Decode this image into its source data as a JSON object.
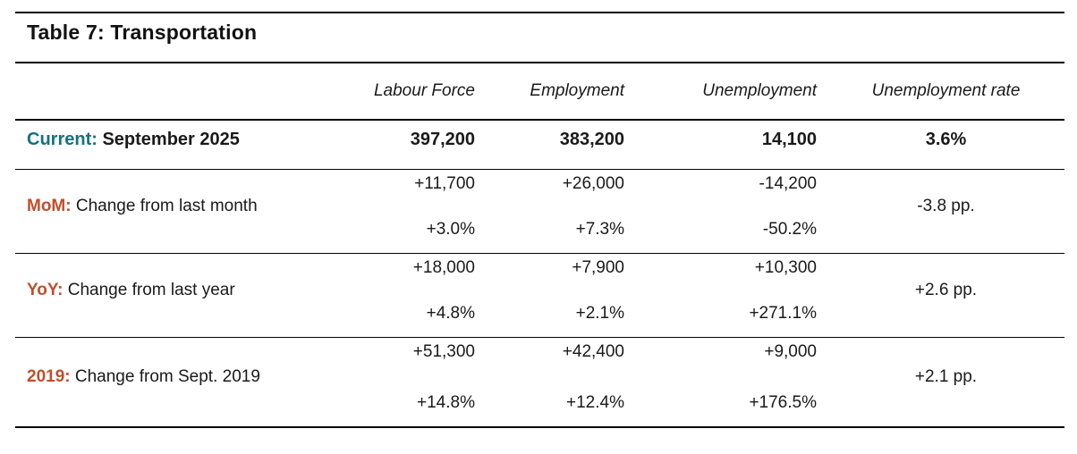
{
  "colors": {
    "teal": "#16717f",
    "orange": "#c14e2d",
    "text": "#1a1a1a",
    "line": "#000000"
  },
  "table": {
    "title": "Table 7: Transportation",
    "columns": [
      "Labour Force",
      "Employment",
      "Unemployment",
      "Unemployment rate"
    ],
    "current": {
      "prefix": "Current:",
      "label": "September 2025",
      "labour_force": "397,200",
      "employment": "383,200",
      "unemployment": "14,100",
      "unemployment_rate": "3.6%"
    },
    "rows": [
      {
        "prefix": "MoM:",
        "label": "Change from last month",
        "labour_force": {
          "change": "+11,700",
          "percent": "+3.0%"
        },
        "employment": {
          "change": "+26,000",
          "percent": "+7.3%"
        },
        "unemployment": {
          "change": "-14,200",
          "percent": "-50.2%"
        },
        "rate_change": "-3.8 pp."
      },
      {
        "prefix": "YoY:",
        "label": "Change from last year",
        "labour_force": {
          "change": "+18,000",
          "percent": "+4.8%"
        },
        "employment": {
          "change": "+7,900",
          "percent": "+2.1%"
        },
        "unemployment": {
          "change": "+10,300",
          "percent": "+271.1%"
        },
        "rate_change": "+2.6 pp."
      },
      {
        "prefix": "2019:",
        "label": "Change from Sept. 2019",
        "labour_force": {
          "change": "+51,300",
          "percent": "+14.8%"
        },
        "employment": {
          "change": "+42,400",
          "percent": "+12.4%"
        },
        "unemployment": {
          "change": "+9,000",
          "percent": "+176.5%"
        },
        "rate_change": "+2.1 pp."
      }
    ]
  },
  "chart_data": {
    "type": "table",
    "title": "Table 7: Transportation",
    "columns": [
      "",
      "Labour Force",
      "Employment",
      "Unemployment",
      "Unemployment rate"
    ],
    "rows": [
      [
        "Current: September 2025",
        "397,200",
        "383,200",
        "14,100",
        "3.6%"
      ],
      [
        "MoM: Change from last month",
        "+11,700 / +3.0%",
        "+26,000 / +7.3%",
        "-14,200 / -50.2%",
        "-3.8 pp."
      ],
      [
        "YoY: Change from last year",
        "+18,000 / +4.8%",
        "+7,900 / +2.1%",
        "+10,300 / +271.1%",
        "+2.6 pp."
      ],
      [
        "2019: Change from Sept. 2019",
        "+51,300 / +14.8%",
        "+42,400 / +12.4%",
        "+9,000 / +176.5%",
        "+2.1 pp."
      ]
    ]
  }
}
